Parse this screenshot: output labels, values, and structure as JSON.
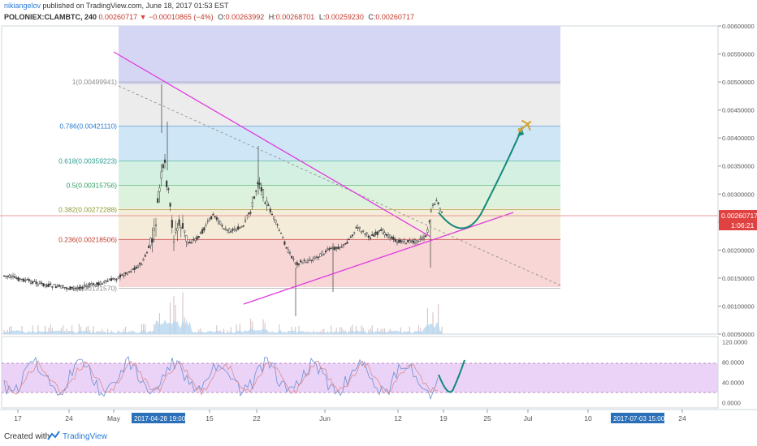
{
  "header": {
    "author": "nikiangelov",
    "published": "published on TradingView.com, June 18, 2017 01:53 EST",
    "symbol": "POLONIEX:CLAMBTC, 240",
    "last": "0.00260717",
    "change": "−0.00010865 (−4%)",
    "o_label": "O:",
    "o_value": "0.00263992",
    "h_label": "H:",
    "h_value": "0.00268701",
    "l_label": "L:",
    "l_value": "0.00259230",
    "c_label": "C:",
    "c_value": "0.00260717"
  },
  "footer": {
    "created": "Created with",
    "brand": "TradingView"
  },
  "colors": {
    "fib_line": "#c8c8c8",
    "trend": "#e03adf",
    "projection": "#14897a",
    "price_label": "#e04141",
    "stoch_band": "#e6c8f6",
    "candle_up": "#3a3a3a",
    "candle_down": "#3a3a3a"
  },
  "chart_data": {
    "type": "candlestick",
    "price_axis": {
      "ylim": [
        0.0005,
        0.006
      ],
      "ticks": [
        "0.00600000",
        "0.00550000",
        "0.00500000",
        "0.00450000",
        "0.00400000",
        "0.00350000",
        "0.00300000",
        "0.00250000",
        "0.00200000",
        "0.00150000",
        "0.00100000",
        "0.00050000"
      ]
    },
    "current_price": {
      "value": "0.00260717",
      "countdown": "1:06:21"
    },
    "fib_levels": [
      {
        "label": "1(0.00499941)",
        "value": 0.00499941
      },
      {
        "label": "0.786(0.00421110)",
        "value": 0.0042111
      },
      {
        "label": "0.618(0.00359223)",
        "value": 0.00359223
      },
      {
        "label": "0.5(0.00315756)",
        "value": 0.00315756
      },
      {
        "label": "0.382(0.00272288)",
        "value": 0.00272288
      },
      {
        "label": "0.236(0.00218506)",
        "value": 0.00218506
      },
      {
        "label": "0(0.00131570)",
        "value": 0.0013157
      }
    ],
    "oscillator_axis": {
      "ylim": [
        -10,
        130
      ],
      "ticks": [
        "120.0000",
        "80.0000",
        "40.0000",
        "0.0000"
      ],
      "bands": [
        20,
        80
      ]
    },
    "time_axis": {
      "ticks": [
        "17",
        "24",
        "May",
        "15",
        "22",
        "Jun",
        "12",
        "19",
        "25",
        "Jul",
        "10",
        "24"
      ],
      "crosshair_labels": [
        "2017-04-28 19:00:00",
        "2017-07-03 15:00:00"
      ]
    }
  }
}
